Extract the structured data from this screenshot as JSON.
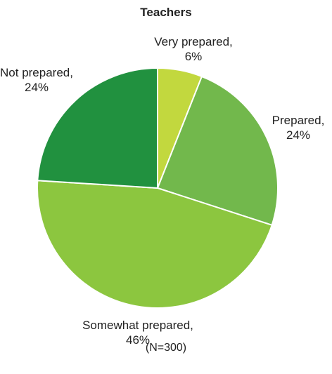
{
  "chart_data": {
    "type": "pie",
    "title": "Teachers",
    "start_angle_deg": 0,
    "direction": "clockwise",
    "slices": [
      {
        "label": "Very prepared,",
        "value_label": "6%",
        "value": 6,
        "color": "#c2d83e"
      },
      {
        "label": "Prepared,",
        "value_label": "24%",
        "value": 24,
        "color": "#72b84c"
      },
      {
        "label": "Somewhat prepared,",
        "value_label": "46%",
        "value": 46,
        "color": "#8cc63f"
      },
      {
        "label": "Not prepared,",
        "value_label": "24%",
        "value": 24,
        "color": "#21913f"
      }
    ],
    "note": "(N=300)"
  }
}
